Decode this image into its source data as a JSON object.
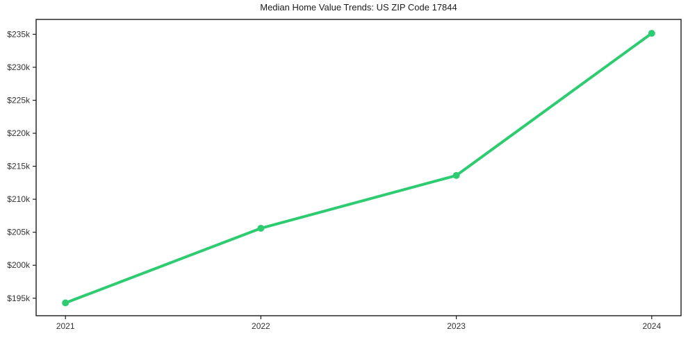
{
  "chart_data": {
    "type": "line",
    "title": "Median Home Value Trends: US ZIP Code 17844",
    "x": [
      2021,
      2022,
      2023,
      2024
    ],
    "values": [
      194300,
      205600,
      213600,
      235150
    ],
    "xticks": {
      "values": [
        2021,
        2022,
        2023,
        2024
      ],
      "labels": [
        "2021",
        "2022",
        "2023",
        "2024"
      ]
    },
    "yticks": {
      "values": [
        195000,
        200000,
        205000,
        210000,
        215000,
        220000,
        225000,
        230000,
        235000
      ],
      "labels": [
        "$195k",
        "$200k",
        "$205k",
        "$210k",
        "$215k",
        "$220k",
        "$225k",
        "$230k",
        "$235k"
      ]
    },
    "xlim": [
      2020.85,
      2024.15
    ],
    "ylim": [
      192350,
      237250
    ],
    "grid": false,
    "legend": "none",
    "line_color": "#2ecc71",
    "marker_color": "#2ecc71",
    "axis_color": "#1a1a1a",
    "tick_label_color": "#333333",
    "background_color": "#ffffff"
  }
}
